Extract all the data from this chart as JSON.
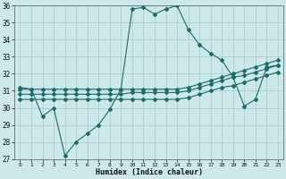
{
  "xlabel": "Humidex (Indice chaleur)",
  "xlim": [
    -0.5,
    23.5
  ],
  "ylim": [
    27,
    36
  ],
  "yticks": [
    27,
    28,
    29,
    30,
    31,
    32,
    33,
    34,
    35,
    36
  ],
  "xticks": [
    0,
    1,
    2,
    3,
    4,
    5,
    6,
    7,
    8,
    9,
    10,
    11,
    12,
    13,
    14,
    15,
    16,
    17,
    18,
    19,
    20,
    21,
    22,
    23
  ],
  "bg_color": "#cce8e8",
  "line_color": "#1a6b6b",
  "grid_color": "#aacfcf",
  "lines": [
    {
      "x": [
        0,
        1,
        2,
        3,
        4,
        5,
        6,
        7,
        8,
        9,
        10,
        11,
        12,
        13,
        14,
        15,
        16,
        17,
        18,
        19,
        20,
        21,
        22,
        23
      ],
      "y": [
        31.2,
        31.1,
        29.5,
        30.0,
        27.2,
        28.0,
        28.5,
        29.0,
        29.9,
        31.1,
        35.8,
        35.9,
        35.5,
        35.8,
        36.0,
        34.6,
        33.7,
        33.2,
        32.8,
        31.8,
        30.1,
        30.5,
        32.4,
        32.5
      ]
    },
    {
      "x": [
        0,
        1,
        2,
        3,
        4,
        5,
        6,
        7,
        8,
        9,
        10,
        11,
        12,
        13,
        14,
        15,
        16,
        17,
        18,
        19,
        20,
        21,
        22,
        23
      ],
      "y": [
        31.1,
        31.1,
        31.1,
        31.1,
        31.1,
        31.1,
        31.1,
        31.1,
        31.1,
        31.1,
        31.1,
        31.1,
        31.1,
        31.1,
        31.1,
        31.2,
        31.4,
        31.6,
        31.8,
        32.0,
        32.2,
        32.4,
        32.6,
        32.8
      ]
    },
    {
      "x": [
        0,
        1,
        2,
        3,
        4,
        5,
        6,
        7,
        8,
        9,
        10,
        11,
        12,
        13,
        14,
        15,
        16,
        17,
        18,
        19,
        20,
        21,
        22,
        23
      ],
      "y": [
        30.8,
        30.8,
        30.8,
        30.8,
        30.8,
        30.8,
        30.8,
        30.8,
        30.8,
        30.8,
        30.9,
        30.9,
        30.9,
        30.9,
        30.9,
        31.0,
        31.2,
        31.4,
        31.6,
        31.8,
        31.9,
        32.1,
        32.3,
        32.5
      ]
    },
    {
      "x": [
        0,
        1,
        2,
        3,
        4,
        5,
        6,
        7,
        8,
        9,
        10,
        11,
        12,
        13,
        14,
        15,
        16,
        17,
        18,
        19,
        20,
        21,
        22,
        23
      ],
      "y": [
        30.5,
        30.5,
        30.5,
        30.5,
        30.5,
        30.5,
        30.5,
        30.5,
        30.5,
        30.5,
        30.5,
        30.5,
        30.5,
        30.5,
        30.5,
        30.6,
        30.8,
        31.0,
        31.2,
        31.3,
        31.5,
        31.7,
        31.9,
        32.1
      ]
    }
  ]
}
